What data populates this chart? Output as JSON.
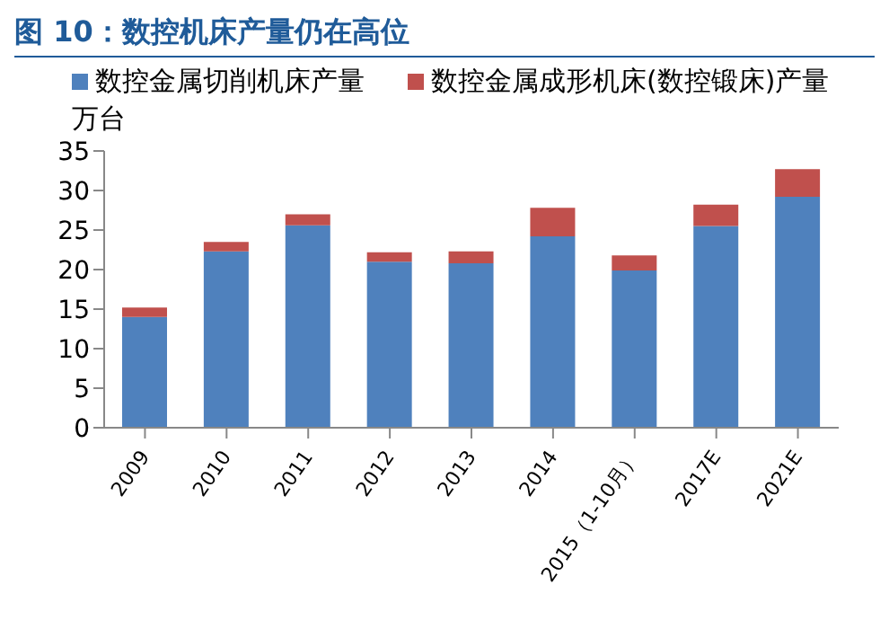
{
  "chart_data": {
    "type": "bar",
    "title": "图 10：数控机床产量仍在高位",
    "ylabel": "万台",
    "categories": [
      "2009",
      "2010",
      "2011",
      "2012",
      "2013",
      "2014",
      "2015（1-10月）",
      "2017E",
      "2021E"
    ],
    "series": [
      {
        "name": "数控金属切削机床产量",
        "color": "#4f81bd",
        "values": [
          14.0,
          22.3,
          25.6,
          21.0,
          20.8,
          24.2,
          19.9,
          25.5,
          29.2
        ]
      },
      {
        "name": "数控金属成形机床(数控锻床)产量",
        "color": "#c0504d",
        "values": [
          1.2,
          1.2,
          1.4,
          1.2,
          1.5,
          3.6,
          1.9,
          2.7,
          3.5
        ]
      }
    ],
    "stacked": true,
    "ylim": [
      0,
      35
    ],
    "yticks": [
      0,
      5,
      10,
      15,
      20,
      25,
      30,
      35
    ],
    "grid": false,
    "legend": "top"
  }
}
